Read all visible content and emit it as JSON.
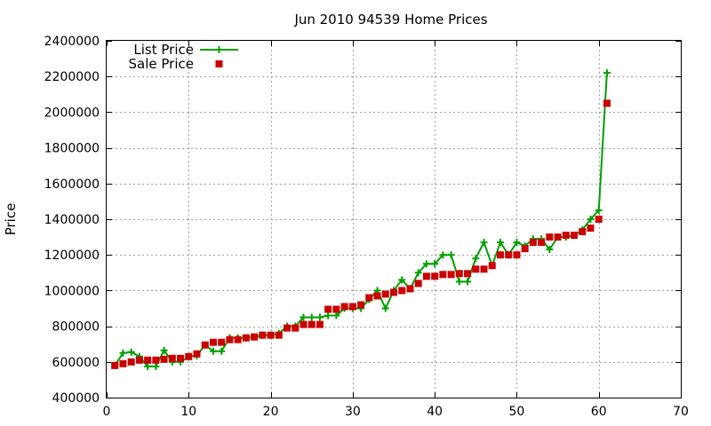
{
  "chart_data": {
    "type": "line",
    "title": "Jun 2010 94539 Home Prices",
    "xlabel": "",
    "ylabel": "Price",
    "xlim": [
      0,
      70
    ],
    "ylim": [
      400000,
      2400000
    ],
    "x_ticks": [
      "0",
      "10",
      "20",
      "30",
      "40",
      "50",
      "60",
      "70"
    ],
    "y_ticks": [
      "400000",
      "600000",
      "800000",
      "1000000",
      "1200000",
      "1400000",
      "1600000",
      "1800000",
      "2000000",
      "2200000",
      "2400000"
    ],
    "grid": true,
    "legend_position": "top-left",
    "series": [
      {
        "name": "List Price",
        "style": "line-plus",
        "color": "#00a000",
        "x": [
          1,
          2,
          3,
          4,
          5,
          6,
          7,
          8,
          9,
          10,
          11,
          12,
          13,
          14,
          15,
          16,
          17,
          18,
          19,
          20,
          21,
          22,
          23,
          24,
          25,
          26,
          27,
          28,
          29,
          30,
          31,
          32,
          33,
          34,
          35,
          36,
          37,
          38,
          39,
          40,
          41,
          42,
          43,
          44,
          45,
          46,
          47,
          48,
          49,
          50,
          51,
          52,
          53,
          54,
          55,
          56,
          57,
          58,
          59,
          60,
          61
        ],
        "values": [
          580000,
          650000,
          655000,
          630000,
          575000,
          575000,
          665000,
          600000,
          600000,
          630000,
          635000,
          695000,
          660000,
          660000,
          735000,
          735000,
          735000,
          740000,
          750000,
          750000,
          760000,
          800000,
          800000,
          850000,
          850000,
          850000,
          860000,
          860000,
          900000,
          900000,
          900000,
          950000,
          1000000,
          900000,
          1000000,
          1060000,
          1010000,
          1100000,
          1150000,
          1150000,
          1200000,
          1200000,
          1050000,
          1050000,
          1180000,
          1270000,
          1140000,
          1270000,
          1200000,
          1270000,
          1250000,
          1290000,
          1290000,
          1230000,
          1300000,
          1300000,
          1310000,
          1340000,
          1400000,
          1450000,
          2220000
        ]
      },
      {
        "name": "Sale Price",
        "style": "square-points",
        "color": "#cc0000",
        "x": [
          1,
          2,
          3,
          4,
          5,
          6,
          7,
          8,
          9,
          10,
          11,
          12,
          13,
          14,
          15,
          16,
          17,
          18,
          19,
          20,
          21,
          22,
          23,
          24,
          25,
          26,
          27,
          28,
          29,
          30,
          31,
          32,
          33,
          34,
          35,
          36,
          37,
          38,
          39,
          40,
          41,
          42,
          43,
          44,
          45,
          46,
          47,
          48,
          49,
          50,
          51,
          52,
          53,
          54,
          55,
          56,
          57,
          58,
          59,
          60,
          61
        ],
        "values": [
          580000,
          590000,
          600000,
          610000,
          610000,
          610000,
          615000,
          620000,
          620000,
          630000,
          645000,
          695000,
          710000,
          710000,
          725000,
          725000,
          735000,
          740000,
          750000,
          750000,
          750000,
          790000,
          790000,
          810000,
          810000,
          810000,
          895000,
          895000,
          910000,
          910000,
          920000,
          960000,
          970000,
          980000,
          990000,
          1000000,
          1010000,
          1040000,
          1080000,
          1080000,
          1090000,
          1090000,
          1095000,
          1095000,
          1120000,
          1120000,
          1140000,
          1200000,
          1200000,
          1200000,
          1235000,
          1270000,
          1270000,
          1300000,
          1300000,
          1310000,
          1310000,
          1330000,
          1350000,
          1400000,
          2050000
        ]
      }
    ]
  }
}
